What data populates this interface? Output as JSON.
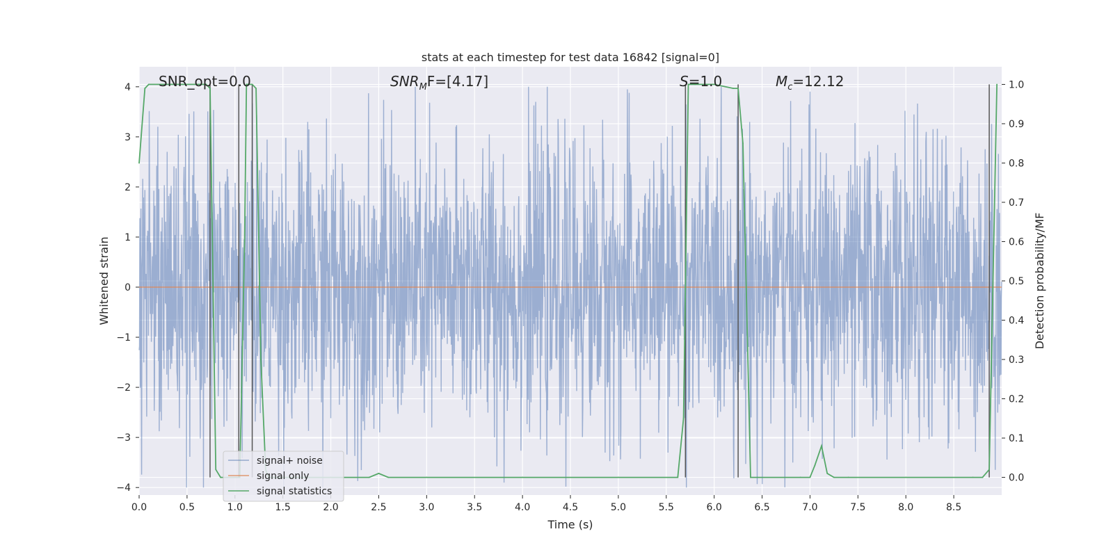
{
  "chart_data": {
    "type": "line",
    "title": "stats at each timestep for test data 16842 [signal=0]",
    "xlabel": "Time (s)",
    "ylabel": "Whitened strain",
    "ylabel_right": "Detection probability/MF",
    "xlim": [
      0.0,
      9.0
    ],
    "ylim": [
      -4.15,
      4.4
    ],
    "ylim_right": [
      -0.045,
      1.045
    ],
    "xticks": [
      0.0,
      0.5,
      1.0,
      1.5,
      2.0,
      2.5,
      3.0,
      3.5,
      4.0,
      4.5,
      5.0,
      5.5,
      6.0,
      6.5,
      7.0,
      7.5,
      8.0,
      8.5
    ],
    "xtick_labels": [
      "0.0",
      "0.5",
      "1.0",
      "1.5",
      "2.0",
      "2.5",
      "3.0",
      "3.5",
      "4.0",
      "4.5",
      "5.0",
      "5.5",
      "6.0",
      "6.5",
      "7.0",
      "7.5",
      "8.0",
      "8.5"
    ],
    "yticks": [
      4,
      3,
      2,
      1,
      0,
      -1,
      -2,
      -3,
      -4
    ],
    "ytick_labels": [
      "4",
      "3",
      "2",
      "1",
      "0",
      "−1",
      "−2",
      "−3",
      "−4"
    ],
    "yticks_right": [
      1.0,
      0.9,
      0.8,
      0.7,
      0.6,
      0.5,
      0.4,
      0.3,
      0.2,
      0.1,
      0.0
    ],
    "ytick_labels_right": [
      "1.0",
      "0.9",
      "0.8",
      "0.7",
      "0.6",
      "0.5",
      "0.4",
      "0.3",
      "0.2",
      "0.1",
      "0.0"
    ],
    "grid": true,
    "legend": {
      "placement": "lower-left",
      "entries": [
        "signal+ noise",
        "signal only",
        "signal statistics"
      ]
    },
    "annotations": [
      {
        "label": "SNR_opt=0.0"
      },
      {
        "label_main": "SNR",
        "label_sub": "M",
        "label_rest": "F=[4.17]"
      },
      {
        "label_main": "S",
        "label_rest": "=1.0"
      },
      {
        "label_main": "M",
        "label_sub": "c",
        "label_rest": "=12.12"
      }
    ],
    "series": [
      {
        "name": "signal+ noise",
        "color": "#4c72b0",
        "description_values": {
          "x_start": 0.0,
          "x_end": 9.0,
          "approx_range": [
            -4.0,
            4.0
          ],
          "typical_abs": 1.5
        }
      },
      {
        "name": "signal only",
        "color": "#dd8452",
        "x": [
          0.0,
          9.0
        ],
        "y": [
          0.0,
          0.0
        ]
      },
      {
        "name": "signal statistics",
        "color": "#55a868",
        "axis": "right",
        "x": [
          0.0,
          0.06,
          0.1,
          0.2,
          0.6,
          0.7,
          0.74,
          0.8,
          0.85,
          1.0,
          1.05,
          1.1,
          1.12,
          1.18,
          1.22,
          1.27,
          1.32,
          1.35,
          1.4,
          2.0,
          2.4,
          2.5,
          2.6,
          3.0,
          4.0,
          5.0,
          5.62,
          5.68,
          5.73,
          5.8,
          6.0,
          6.2,
          6.25,
          6.3,
          6.38,
          6.45,
          6.9,
          7.0,
          7.05,
          7.12,
          7.18,
          7.25,
          7.4,
          8.0,
          8.7,
          8.8,
          8.87,
          8.95
        ],
        "y": [
          0.8,
          0.99,
          1.0,
          1.0,
          1.0,
          1.0,
          0.99,
          0.02,
          0.0,
          0.0,
          0.0,
          0.6,
          1.0,
          1.0,
          0.99,
          0.3,
          0.02,
          0.0,
          0.0,
          0.0,
          0.0,
          0.01,
          0.0,
          0.0,
          0.0,
          0.0,
          0.0,
          0.15,
          1.0,
          1.0,
          1.0,
          0.99,
          0.99,
          0.85,
          0.0,
          0.0,
          0.0,
          0.0,
          0.03,
          0.08,
          0.01,
          0.0,
          0.0,
          0.0,
          0.0,
          0.0,
          0.02,
          1.0
        ]
      }
    ],
    "vertical_markers_x": [
      0.74,
      1.04,
      1.18,
      5.7,
      6.25,
      8.87
    ]
  }
}
